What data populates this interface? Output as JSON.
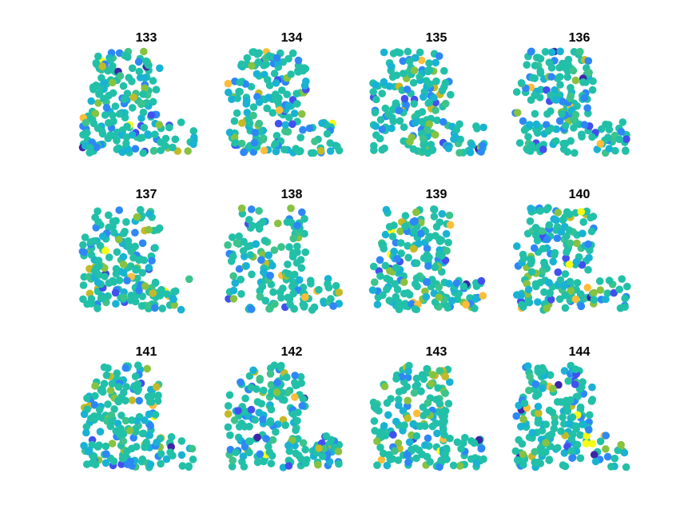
{
  "chart_data": {
    "type": "scatter",
    "layout": "grid",
    "rows": 3,
    "cols": 4,
    "axes_visible": false,
    "grid": false,
    "legend": "none",
    "colormap": [
      "#3e26a8",
      "#4250f0",
      "#2e87f7",
      "#19b2d4",
      "#22c0a8",
      "#3dc38c",
      "#87c240",
      "#c4b927",
      "#fcbd3a",
      "#f9fb15"
    ],
    "panels": [
      {
        "title": "133",
        "seed": 133
      },
      {
        "title": "134",
        "seed": 134
      },
      {
        "title": "135",
        "seed": 135
      },
      {
        "title": "136",
        "seed": 136
      },
      {
        "title": "137",
        "seed": 137
      },
      {
        "title": "138",
        "seed": 138
      },
      {
        "title": "139",
        "seed": 139
      },
      {
        "title": "140",
        "seed": 140
      },
      {
        "title": "141",
        "seed": 141
      },
      {
        "title": "142",
        "seed": 142
      },
      {
        "title": "143",
        "seed": 143
      },
      {
        "title": "144",
        "seed": 144
      }
    ]
  }
}
